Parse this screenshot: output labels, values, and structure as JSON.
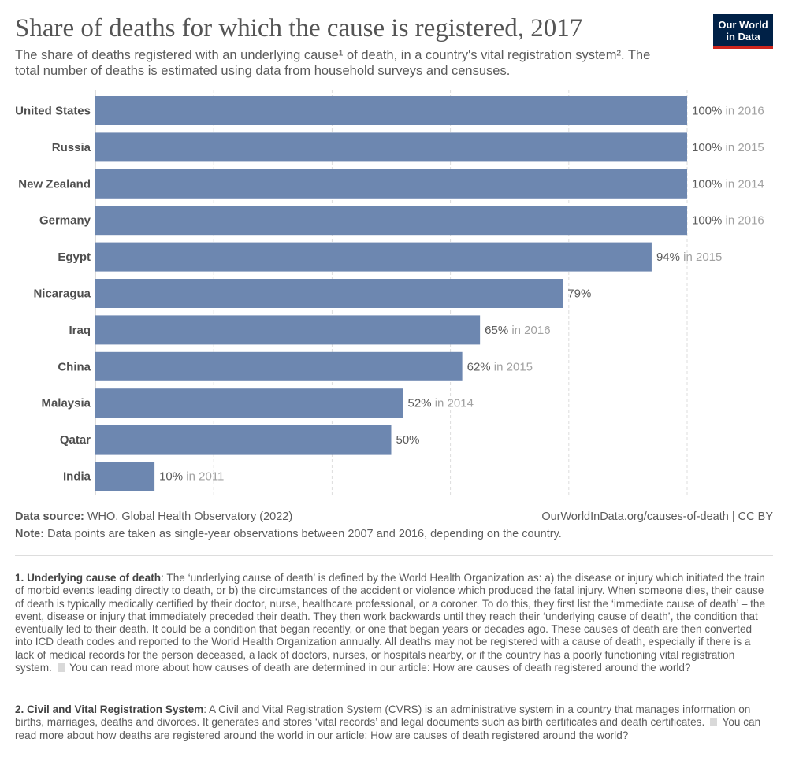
{
  "header": {
    "title": "Share of deaths for which the cause is registered, 2017",
    "subtitle": "The share of deaths registered with an underlying cause¹ of death, in a country's vital registration system². The total number of deaths is estimated using data from household surveys and censuses."
  },
  "logo": {
    "line1": "Our World",
    "line2": "in Data"
  },
  "colors": {
    "bar": "#6d87b0",
    "logo_bg": "#002147",
    "logo_accent": "#ce261e",
    "year_label": "#a1a1a1"
  },
  "chart_data": {
    "type": "bar",
    "orientation": "horizontal",
    "categories": [
      "United States",
      "Russia",
      "New Zealand",
      "Germany",
      "Egypt",
      "Nicaragua",
      "Iraq",
      "China",
      "Malaysia",
      "Qatar",
      "India"
    ],
    "values": [
      100,
      100,
      100,
      100,
      94,
      79,
      65,
      62,
      52,
      50,
      10
    ],
    "value_labels": [
      "100%",
      "100%",
      "100%",
      "100%",
      "94%",
      "79%",
      "65%",
      "62%",
      "52%",
      "50%",
      "10%"
    ],
    "year_labels": [
      "in 2016",
      "in 2015",
      "in 2014",
      "in 2016",
      "in 2015",
      "",
      "in 2016",
      "in 2015",
      "in 2014",
      "",
      "in 2011"
    ],
    "xlim": [
      0,
      100
    ],
    "grid": true
  },
  "footer": {
    "source_label": "Data source:",
    "source_text": "WHO, Global Health Observatory (2022)",
    "link": "OurWorldInData.org/causes-of-death",
    "separator": "|",
    "license": "CC BY",
    "note_label": "Note:",
    "note_text": "Data points are taken as single-year observations between 2007 and 2016, depending on the country."
  },
  "footnotes": {
    "fn1_title": "1. Underlying cause of death",
    "fn1_text": ": The ‘underlying cause of death’ is defined by the World Health Organization as: a) the disease or injury which initiated the train of morbid events leading directly to death, or b) the circumstances of the accident or violence which produced the fatal injury. When someone dies, their cause of death is typically medically certified by their doctor, nurse, healthcare professional, or a coroner. To do this, they first list the ‘immediate cause of death’ – the event, disease or injury that immediately preceded their death. They then work backwards until they reach their ‘underlying cause of death’, the condition that eventually led to their death. It could be a condition that began recently, or one that began years or decades ago. These causes of death are then converted into ICD death codes and reported to the World Health Organization annually. All deaths may not be registered with a cause of death, especially if there is a lack of medical records for the person deceased, a lack of doctors, nurses, or hospitals nearby, or if the country has a poorly functioning vital registration system.",
    "fn1_more": "You can read more about how causes of death are determined in our article: How are causes of death registered around the world?",
    "fn2_title": "2. Civil and Vital Registration System",
    "fn2_text": ": A Civil and Vital Registration System (CVRS) is an administrative system in a country that manages information on births, marriages, deaths and divorces. It generates and stores ‘vital records’ and legal documents such as birth certificates and death certificates.",
    "fn2_more": "You can read more about how deaths are registered around the world in our article: How are causes of death registered around the world?"
  }
}
